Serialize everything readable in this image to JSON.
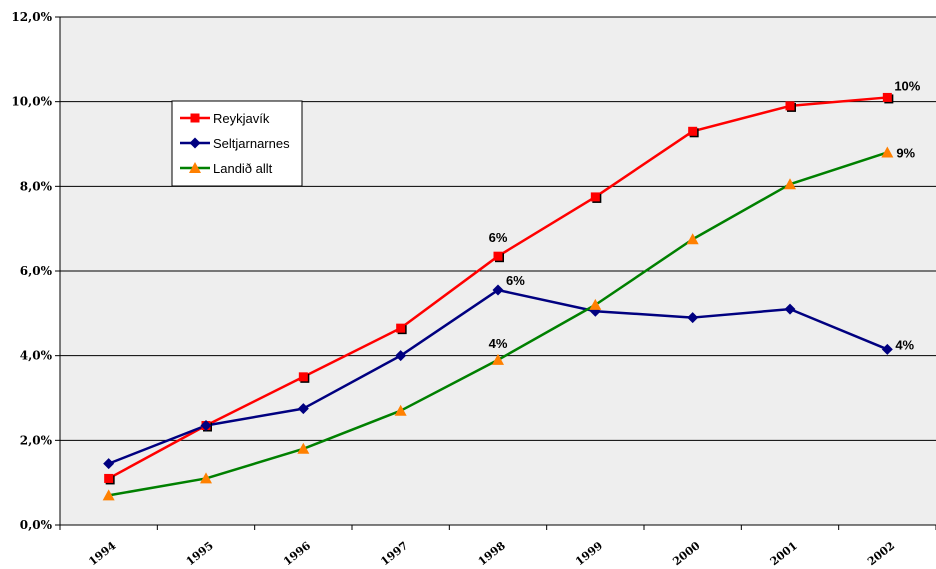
{
  "chart_data": {
    "type": "line",
    "title": "",
    "xlabel": "",
    "ylabel": "",
    "categories": [
      "1994",
      "1995",
      "1996",
      "1997",
      "1998",
      "1999",
      "2000",
      "2001",
      "2002"
    ],
    "ylim": [
      0,
      12
    ],
    "ytick_labels": [
      "0,0%",
      "2,0%",
      "4,0%",
      "6,0%",
      "8,0%",
      "10,0%",
      "12,0%"
    ],
    "grid": true,
    "legend_position": "upper-left",
    "plot_background": "#eeeeee",
    "series": [
      {
        "name": "Reykjavík",
        "color": "#ff0000",
        "marker": "square",
        "values": [
          1.1,
          2.35,
          3.5,
          4.65,
          6.35,
          7.75,
          9.3,
          9.9,
          10.1
        ],
        "labels": [
          {
            "index": 4,
            "text": "6%"
          },
          {
            "index": 8,
            "text": "10%"
          }
        ]
      },
      {
        "name": "Seltjarnarnes",
        "color": "#000080",
        "marker": "diamond",
        "values": [
          1.45,
          2.35,
          2.75,
          4.0,
          5.55,
          5.05,
          4.9,
          5.1,
          4.15
        ],
        "labels": [
          {
            "index": 4,
            "text": "6%"
          },
          {
            "index": 8,
            "text": "4%"
          }
        ]
      },
      {
        "name": "Landið allt",
        "color": "#008000",
        "marker_color": "#ff8000",
        "marker": "triangle",
        "values": [
          0.7,
          1.1,
          1.8,
          2.7,
          3.9,
          5.2,
          6.75,
          8.05,
          8.8
        ],
        "labels": [
          {
            "index": 4,
            "text": "4%"
          },
          {
            "index": 8,
            "text": "9%"
          }
        ]
      }
    ]
  }
}
